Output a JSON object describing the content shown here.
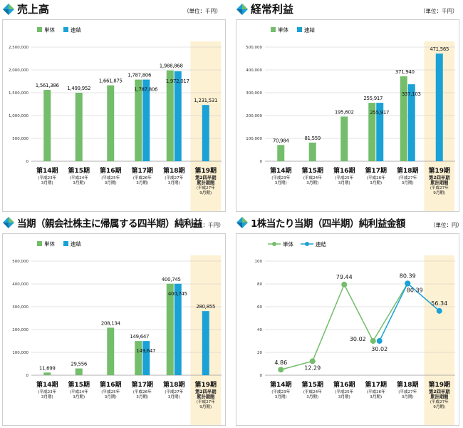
{
  "colors": {
    "tandoku": "#73bd6b",
    "renketsu": "#1aa1d6",
    "highlight": "#fdf1d3",
    "grid": "#c8c8c8"
  },
  "legend": {
    "tandoku": "単体",
    "renketsu": "連結"
  },
  "unit_label": "（単位：千円）",
  "unit_label_yen": "（単位：円）",
  "periods": [
    {
      "label": "第14期",
      "sub": [
        "(平成23年",
        "3月期)"
      ]
    },
    {
      "label": "第15期",
      "sub": [
        "(平成24年",
        "3月期)"
      ]
    },
    {
      "label": "第16期",
      "sub": [
        "(平成25年",
        "3月期)"
      ]
    },
    {
      "label": "第17期",
      "sub": [
        "(平成26年",
        "3月期)"
      ]
    },
    {
      "label": "第18期",
      "sub": [
        "(平成27年",
        "3月期)"
      ]
    },
    {
      "label": "第19期",
      "sub": [
        "第2四半期",
        "累計期間",
        "(平成27年",
        "9月期)"
      ]
    }
  ],
  "chart_data": [
    {
      "type": "bar",
      "title": "売上高",
      "categories": [
        "第14期",
        "第15期",
        "第16期",
        "第17期",
        "第18期",
        "第19期"
      ],
      "ylim": [
        0,
        2500000
      ],
      "yticks": [
        "0",
        "500,000",
        "1,000,000",
        "1,500,000",
        "2,000,000",
        "2,500,000"
      ],
      "series": [
        {
          "name": "単体",
          "values": [
            1561386,
            1499952,
            1661875,
            1787806,
            1988868,
            null
          ],
          "labels": [
            "1,561,386",
            "1,499,952",
            "1,661,875",
            "1,787,806",
            "1,988,868",
            ""
          ]
        },
        {
          "name": "連結",
          "values": [
            null,
            null,
            null,
            1787806,
            1972017,
            1231531
          ],
          "labels": [
            "",
            "",
            "",
            "1,787,806",
            "1,972,017",
            "1,231,531"
          ]
        }
      ],
      "legend": "top-left",
      "grid": true
    },
    {
      "type": "bar",
      "title": "経常利益",
      "categories": [
        "第14期",
        "第15期",
        "第16期",
        "第17期",
        "第18期",
        "第19期"
      ],
      "ylim": [
        0,
        500000
      ],
      "yticks": [
        "0",
        "100,000",
        "200,000",
        "300,000",
        "400,000",
        "500,000"
      ],
      "series": [
        {
          "name": "単体",
          "values": [
            70984,
            81559,
            195602,
            255917,
            371940,
            null
          ],
          "labels": [
            "70,984",
            "81,559",
            "195,602",
            "255,917",
            "371,940",
            ""
          ]
        },
        {
          "name": "連結",
          "values": [
            null,
            null,
            null,
            255917,
            337103,
            471565
          ],
          "labels": [
            "",
            "",
            "",
            "255,917",
            "337,103",
            "471,565"
          ]
        }
      ],
      "legend": "top-left",
      "grid": true
    },
    {
      "type": "bar",
      "title": "当期（親会社株主に帰属する四半期）純利益",
      "categories": [
        "第14期",
        "第15期",
        "第16期",
        "第17期",
        "第18期",
        "第19期"
      ],
      "ylim": [
        0,
        500000
      ],
      "yticks": [
        "0",
        "100,000",
        "200,000",
        "300,000",
        "400,000",
        "500,000"
      ],
      "series": [
        {
          "name": "単体",
          "values": [
            11699,
            29556,
            208134,
            149647,
            400745,
            null
          ],
          "labels": [
            "11,699",
            "29,556",
            "208,134",
            "149,647",
            "400,745",
            ""
          ]
        },
        {
          "name": "連結",
          "values": [
            null,
            null,
            null,
            149647,
            400745,
            280855
          ],
          "labels": [
            "",
            "",
            "",
            "149,647",
            "400,745",
            "280,855"
          ]
        }
      ],
      "legend": "top-left",
      "grid": true
    },
    {
      "type": "line",
      "title": "1株当たり当期（四半期）純利益金額",
      "categories": [
        "第14期",
        "第15期",
        "第16期",
        "第17期",
        "第18期",
        "第19期"
      ],
      "ylim": [
        0,
        100
      ],
      "yticks": [
        "0",
        "20",
        "40",
        "60",
        "80",
        "100"
      ],
      "series": [
        {
          "name": "単体",
          "values": [
            4.86,
            12.29,
            79.44,
            30.02,
            80.39,
            null
          ],
          "labels": [
            "4.86",
            "12.29",
            "79.44",
            "30.02",
            "80.39",
            ""
          ]
        },
        {
          "name": "連結",
          "values": [
            null,
            null,
            null,
            30.02,
            80.39,
            56.34
          ],
          "labels": [
            "",
            "",
            "",
            "30.02",
            "80.39",
            "56.34"
          ]
        }
      ],
      "legend": "top-left",
      "grid": true
    }
  ]
}
